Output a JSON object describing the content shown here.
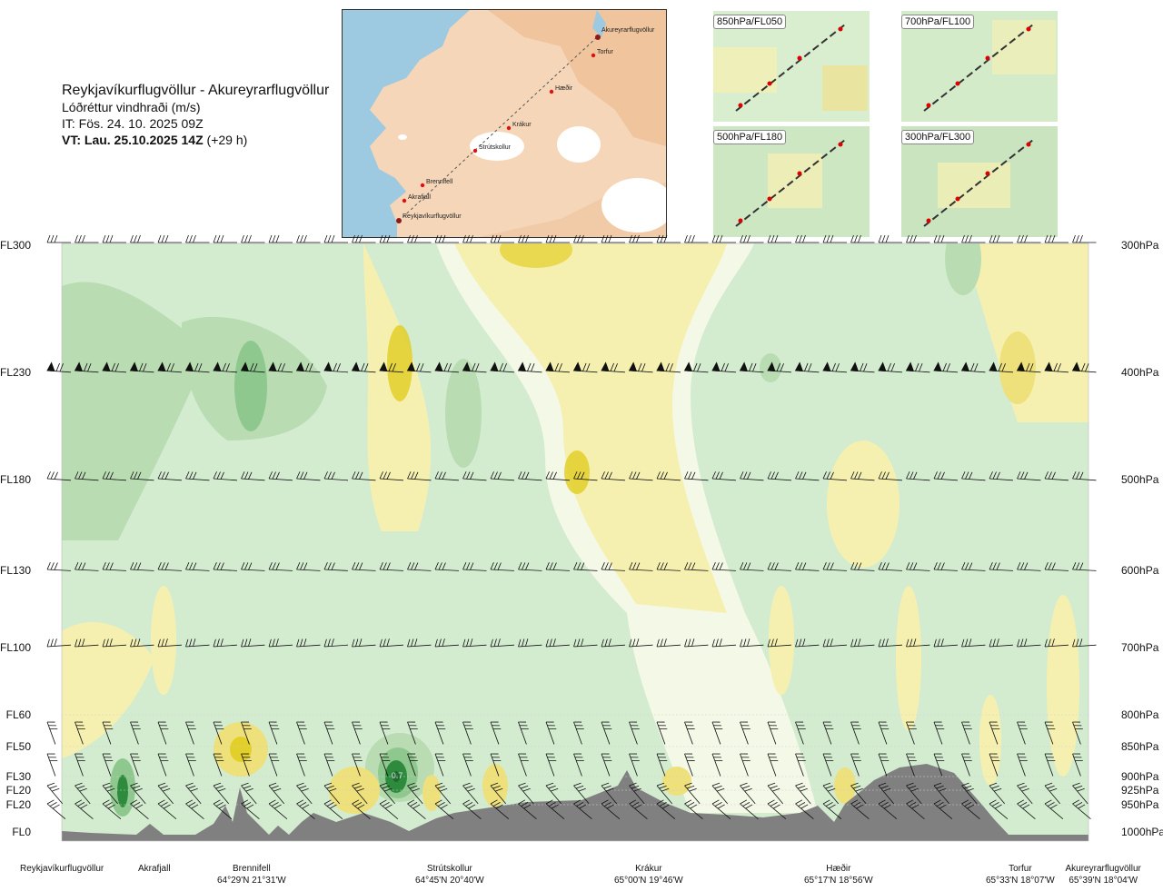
{
  "header": {
    "route": "Reykjavíkurflugvöllur - Akureyrarflugvöllur",
    "parameter": "Lóðréttur vindhraði (m/s)",
    "issue_time": "IT: Fös. 24. 10. 2025 09Z",
    "valid_time_bold": "VT: Lau. 25.10.2025 14Z",
    "valid_offset": "(+29 h)"
  },
  "map": {
    "waypoints": [
      {
        "name": "Akureyrarflugvöllur"
      },
      {
        "name": "Torfur"
      },
      {
        "name": "Hæðir"
      },
      {
        "name": "Krákur"
      },
      {
        "name": "Strútskollur"
      },
      {
        "name": "Brennifell"
      },
      {
        "name": "Akrafjall"
      },
      {
        "name": "Reykjavíkurflugvöllur"
      }
    ]
  },
  "thumbnails": [
    {
      "label": "850hPa/FL050"
    },
    {
      "label": "700hPa/FL100"
    },
    {
      "label": "500hPa/FL180"
    },
    {
      "label": "300hPa/FL300"
    }
  ],
  "levels": [
    {
      "fl": "FL300",
      "hpa": "300hPa"
    },
    {
      "fl": "FL230",
      "hpa": "400hPa"
    },
    {
      "fl": "FL180",
      "hpa": "500hPa"
    },
    {
      "fl": "FL130",
      "hpa": "600hPa"
    },
    {
      "fl": "FL100",
      "hpa": "700hPa"
    },
    {
      "fl": "FL60",
      "hpa": "800hPa"
    },
    {
      "fl": "FL50",
      "hpa": "850hPa"
    },
    {
      "fl": "FL30",
      "hpa": "900hPa"
    },
    {
      "fl": "FL20",
      "hpa": "925hPa"
    },
    {
      "fl": "FL20",
      "hpa": "950hPa"
    },
    {
      "fl": "FL0",
      "hpa": "1000hPa"
    }
  ],
  "contour_label": "0.7",
  "locations": [
    {
      "name": "Reykjavíkurflugvöllur",
      "coord": ""
    },
    {
      "name": "Akrafjall",
      "coord": ""
    },
    {
      "name": "Brennifell",
      "coord": "64°29'N 21°31'W"
    },
    {
      "name": "Strútskollur",
      "coord": "64°45'N 20°40'W"
    },
    {
      "name": "Krákur",
      "coord": "65°00'N 19°46'W"
    },
    {
      "name": "Hæðir",
      "coord": "65°17'N 18°56'W"
    },
    {
      "name": "Torfur",
      "coord": "65°33'N 18°07'W"
    },
    {
      "name": "Akureyrarflugvöllur",
      "coord": "65°39'N 18°04'W"
    }
  ],
  "colors": {
    "strong_down": "#2e8b3e",
    "down": "#8fc88f",
    "weak_down": "#b9dcb3",
    "near_zero_down": "#d3ecd0",
    "near_zero": "#f4f8e6",
    "weak_up": "#f6f0b0",
    "up": "#eee07a",
    "strong_up": "#e2cf2a",
    "terrain": "#808080"
  }
}
